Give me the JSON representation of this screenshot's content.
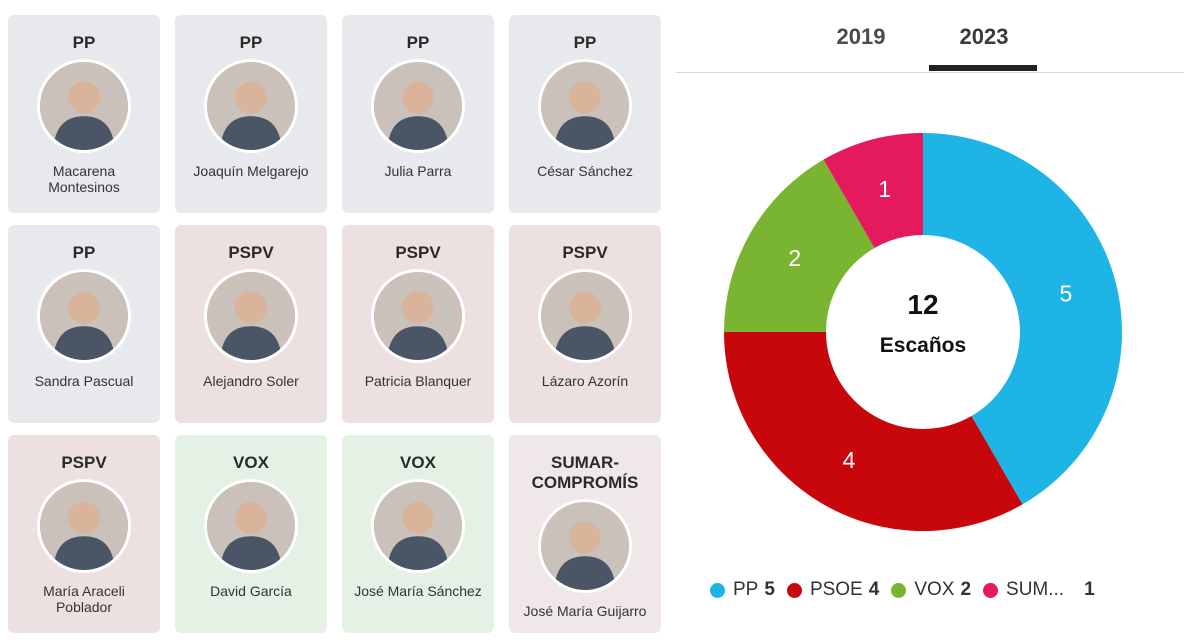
{
  "tabs": {
    "year_2019": "2019",
    "year_2023": "2023",
    "active": "2023"
  },
  "candidates": [
    {
      "party": "PP",
      "name": "Macarena\nMontesinos",
      "group": "pp"
    },
    {
      "party": "PP",
      "name": "Joaquín Melgarejo",
      "group": "pp"
    },
    {
      "party": "PP",
      "name": "Julia Parra",
      "group": "pp"
    },
    {
      "party": "PP",
      "name": "César Sánchez",
      "group": "pp"
    },
    {
      "party": "PP",
      "name": "Sandra Pascual",
      "group": "pp"
    },
    {
      "party": "PSPV",
      "name": "Alejandro Soler",
      "group": "pspv"
    },
    {
      "party": "PSPV",
      "name": "Patricia Blanquer",
      "group": "pspv"
    },
    {
      "party": "PSPV",
      "name": "Lázaro Azorín",
      "group": "pspv"
    },
    {
      "party": "PSPV",
      "name": "María Araceli\nPoblador",
      "group": "pspv"
    },
    {
      "party": "VOX",
      "name": "David García",
      "group": "vox"
    },
    {
      "party": "VOX",
      "name": "José María Sánchez",
      "group": "vox"
    },
    {
      "party": "SUMAR-\nCOMPROMÍS",
      "name": "José María Guijarro",
      "group": "sumar"
    }
  ],
  "chart_data": {
    "type": "pie",
    "center_value": "12",
    "center_label": "Escaños",
    "slices": [
      {
        "label": "PP",
        "value": 5,
        "color": "#1eb4e6"
      },
      {
        "label": "PSOE",
        "value": 4,
        "color": "#c8070d"
      },
      {
        "label": "VOX",
        "value": 2,
        "color": "#7ab532"
      },
      {
        "label": "SUM...",
        "value": 1,
        "color": "#e51a5e"
      }
    ]
  },
  "legend": [
    {
      "label": "PP",
      "value": "5",
      "color": "#1eb4e6"
    },
    {
      "label": "PSOE",
      "value": "4",
      "color": "#c8070d"
    },
    {
      "label": "VOX",
      "value": "2",
      "color": "#7ab532"
    },
    {
      "label": "SUM...",
      "value": "1",
      "color": "#e51a5e"
    }
  ]
}
